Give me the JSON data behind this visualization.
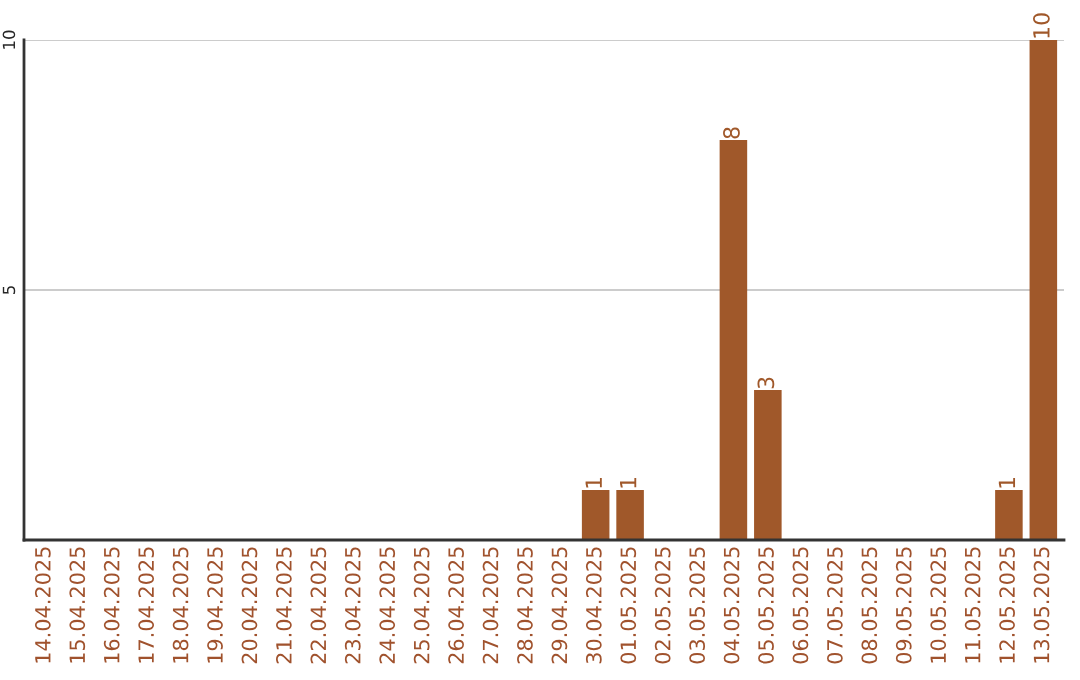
{
  "chart_data": {
    "type": "bar",
    "categories": [
      "14.04.2025",
      "15.04.2025",
      "16.04.2025",
      "17.04.2025",
      "18.04.2025",
      "19.04.2025",
      "20.04.2025",
      "21.04.2025",
      "22.04.2025",
      "23.04.2025",
      "24.04.2025",
      "25.04.2025",
      "26.04.2025",
      "27.04.2025",
      "28.04.2025",
      "29.04.2025",
      "30.04.2025",
      "01.05.2025",
      "02.05.2025",
      "03.05.2025",
      "04.05.2025",
      "05.05.2025",
      "06.05.2025",
      "07.05.2025",
      "08.05.2025",
      "09.05.2025",
      "10.05.2025",
      "11.05.2025",
      "12.05.2025",
      "13.05.2025"
    ],
    "values": [
      0,
      0,
      0,
      0,
      0,
      0,
      0,
      0,
      0,
      0,
      0,
      0,
      0,
      0,
      0,
      0,
      1,
      1,
      0,
      0,
      8,
      3,
      0,
      0,
      0,
      0,
      0,
      0,
      1,
      10
    ],
    "value_labels": [
      null,
      null,
      null,
      null,
      null,
      null,
      null,
      null,
      null,
      null,
      null,
      null,
      null,
      null,
      null,
      null,
      "1",
      "1",
      null,
      null,
      "8",
      "3",
      null,
      null,
      null,
      null,
      null,
      null,
      "1",
      "10"
    ],
    "color": "#a0582a",
    "ylim": [
      0,
      10
    ],
    "yticks": [
      5,
      10
    ],
    "grid": "y"
  }
}
